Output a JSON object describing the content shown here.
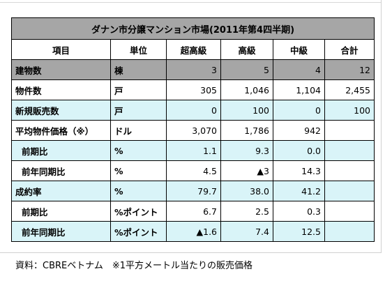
{
  "table": {
    "title": "ダナン市分譲マンション市場(2011年第4四半期)",
    "headers": [
      "項目",
      "単位",
      "超高級",
      "高級",
      "中級",
      "合計"
    ],
    "rows": [
      {
        "label": "建物数",
        "unit": "棟",
        "values": [
          "3",
          "5",
          "4",
          "12"
        ],
        "style": "gray",
        "indent": false
      },
      {
        "label": "物件数",
        "unit": "戸",
        "values": [
          "305",
          "1,046",
          "1,104",
          "2,455"
        ],
        "style": "white",
        "indent": false
      },
      {
        "label": "新規販売数",
        "unit": "戸",
        "values": [
          "0",
          "100",
          "0",
          "100"
        ],
        "style": "cyan",
        "indent": false
      },
      {
        "label": "平均物件価格（※）",
        "unit": "ドル",
        "values": [
          "3,070",
          "1,786",
          "942",
          ""
        ],
        "style": "white",
        "indent": false
      },
      {
        "label": "前期比",
        "unit": "%",
        "values": [
          "1.1",
          "9.3",
          "0.0",
          ""
        ],
        "style": "cyan",
        "indent": true
      },
      {
        "label": "前年同期比",
        "unit": "%",
        "values": [
          "4.5",
          "▲3",
          "14.3",
          ""
        ],
        "style": "white",
        "indent": true
      },
      {
        "label": "成約率",
        "unit": "%",
        "values": [
          "79.7",
          "38.0",
          "41.2",
          ""
        ],
        "style": "cyan",
        "indent": false
      },
      {
        "label": "前期比",
        "unit": "%ポイント",
        "values": [
          "6.7",
          "2.5",
          "0.3",
          ""
        ],
        "style": "white",
        "indent": true
      },
      {
        "label": "前年同期比",
        "unit": "%ポイント",
        "values": [
          "▲1.6",
          "7.4",
          "12.5",
          ""
        ],
        "style": "cyan",
        "indent": true
      }
    ]
  },
  "footnote": "資料：CBREベトナム　※1平方メートル当たりの販売価格"
}
